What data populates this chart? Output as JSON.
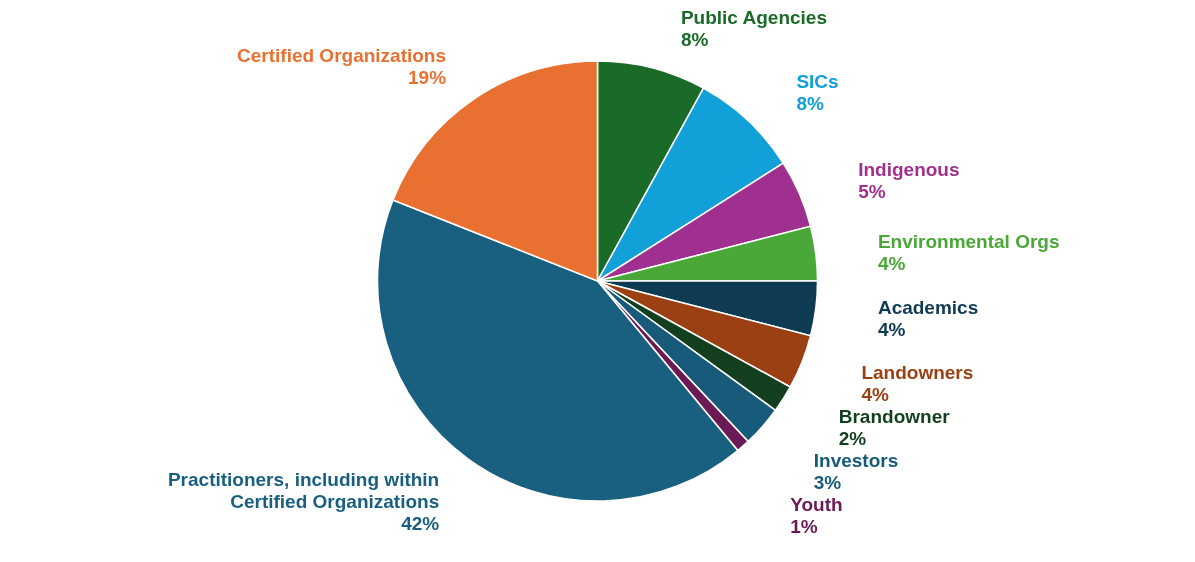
{
  "chart_data": {
    "type": "pie",
    "categories": [
      "Public Agencies",
      "SICs",
      "Indigenous",
      "Environmental Orgs",
      "Academics",
      "Landowners",
      "Brandowner",
      "Investors",
      "Youth",
      "Practitioners, including within Certified Organizations",
      "Certified Organizations"
    ],
    "values": [
      8,
      8,
      5,
      4,
      4,
      4,
      2,
      3,
      1,
      42,
      19
    ],
    "value_labels": [
      "8%",
      "8%",
      "5%",
      "4%",
      "4%",
      "4%",
      "2%",
      "3%",
      "1%",
      "42%",
      "19%"
    ],
    "colors": [
      "#1b6b28",
      "#12a0d8",
      "#a0308f",
      "#4aa838",
      "#0f3b52",
      "#9a4012",
      "#133f1e",
      "#185a7a",
      "#6b1a55",
      "#185f80",
      "#e87131"
    ]
  }
}
